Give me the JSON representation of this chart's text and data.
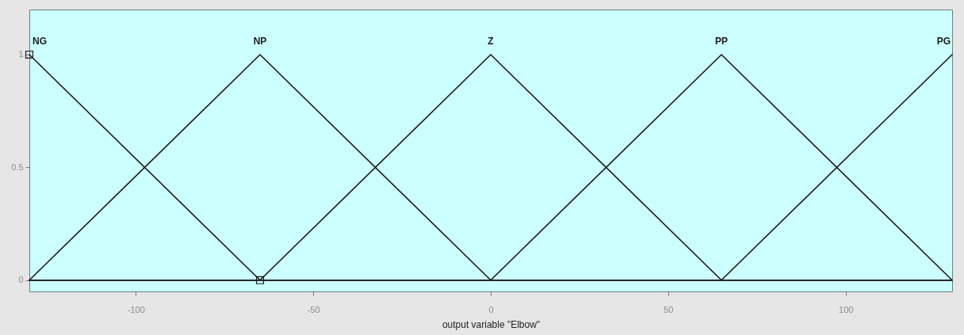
{
  "chart_data": {
    "type": "line",
    "xlabel": "output variable \"Elbow\"",
    "xlim": [
      -130,
      130
    ],
    "ylim": [
      -0.05,
      1.2
    ],
    "xticks": [
      -100,
      -50,
      0,
      50,
      100
    ],
    "yticks": [
      0,
      0.5,
      1
    ],
    "grid": false,
    "legend": false,
    "series": [
      {
        "name": "NG",
        "color": "#1a1a1a",
        "x": [
          -130,
          -65,
          130
        ],
        "values": [
          1,
          0,
          0
        ]
      },
      {
        "name": "NP",
        "color": "#1a1a1a",
        "x": [
          -130,
          -65,
          0,
          130
        ],
        "values": [
          0,
          1,
          0,
          0
        ]
      },
      {
        "name": "Z",
        "color": "#1a1a1a",
        "x": [
          -130,
          -65,
          0,
          65,
          130
        ],
        "values": [
          0,
          0,
          1,
          0,
          0
        ]
      },
      {
        "name": "PP",
        "color": "#1a1a1a",
        "x": [
          -130,
          0,
          65,
          130
        ],
        "values": [
          0,
          0,
          1,
          0
        ]
      },
      {
        "name": "PG",
        "color": "#1a1a1a",
        "x": [
          -130,
          65,
          130
        ],
        "values": [
          0,
          0,
          1
        ]
      },
      {
        "type": "scatter",
        "marker": "square",
        "color": "#1a1a1a",
        "x": [
          -130,
          -65
        ],
        "values": [
          1,
          0
        ]
      }
    ]
  }
}
